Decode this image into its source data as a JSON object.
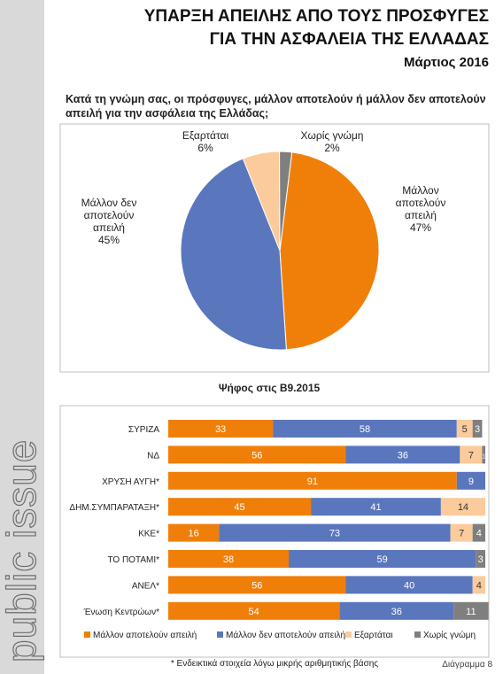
{
  "header": {
    "title_lines": [
      "ΥΠΑΡΞΗ ΑΠΕΙΛΗΣ ΑΠΟ ΤΟΥΣ ΠΡΟΣΦΥΓΕΣ",
      "ΓΙΑ ΤΗΝ ΑΣΦΑΛΕΙΑ ΤΗΣ ΕΛΛΑΔΑΣ"
    ],
    "date": "Μάρτιος 2016"
  },
  "brand": "public issue",
  "chart_data": [
    {
      "type": "pie",
      "title": "Κατά τη γνώμη σας, οι πρόσφυγες, μάλλον αποτελούν ή μάλλον δεν αποτελούν απειλή για την ασφάλεια της Ελλάδας;",
      "categories": [
        "Μάλλον αποτελούν απειλή",
        "Μάλλον δεν αποτελούν απειλή",
        "Εξαρτάται",
        "Χωρίς γνώμη"
      ],
      "values": [
        47,
        45,
        6,
        2
      ],
      "value_labels": [
        "47%",
        "45%",
        "6%",
        "2%"
      ],
      "colors": [
        "#f07f09",
        "#5a76bd",
        "#fbcb9b",
        "#7f7f7f"
      ]
    },
    {
      "type": "stacked-bar",
      "title": "Ψήφος στις Β9.2015",
      "categories": [
        "ΣΥΡΙΖΑ",
        "ΝΔ",
        "ΧΡΥΣΗ ΑΥΓΗ*",
        "ΔΗΜ.ΣΥΜΠΑΡΑΤΑΞΗ*",
        "ΚΚΕ*",
        "ΤΟ ΠΟΤΑΜΙ*",
        "ΑΝΕΛ*",
        "Ένωση Κεντρώων*"
      ],
      "series": [
        {
          "name": "Μάλλον αποτελούν απειλή",
          "color": "#f07f09",
          "values": [
            33,
            56,
            91,
            45,
            16,
            38,
            56,
            54
          ]
        },
        {
          "name": "Μάλλον δεν αποτελούν απειλή",
          "color": "#5a76bd",
          "values": [
            58,
            36,
            9,
            41,
            73,
            59,
            40,
            36
          ]
        },
        {
          "name": "Εξαρτάται",
          "color": "#fbcb9b",
          "values": [
            5,
            7,
            null,
            14,
            7,
            null,
            4,
            null
          ]
        },
        {
          "name": "Χωρίς γνώμη",
          "color": "#7f7f7f",
          "values": [
            3,
            1,
            null,
            null,
            4,
            3,
            null,
            11
          ]
        }
      ],
      "xlim": [
        0,
        100
      ]
    }
  ],
  "footer": {
    "note": "* Ενδεικτικά στοιχεία λόγω μικρής αριθμητικής βάσης",
    "page": "Διάγραμμα 8"
  }
}
